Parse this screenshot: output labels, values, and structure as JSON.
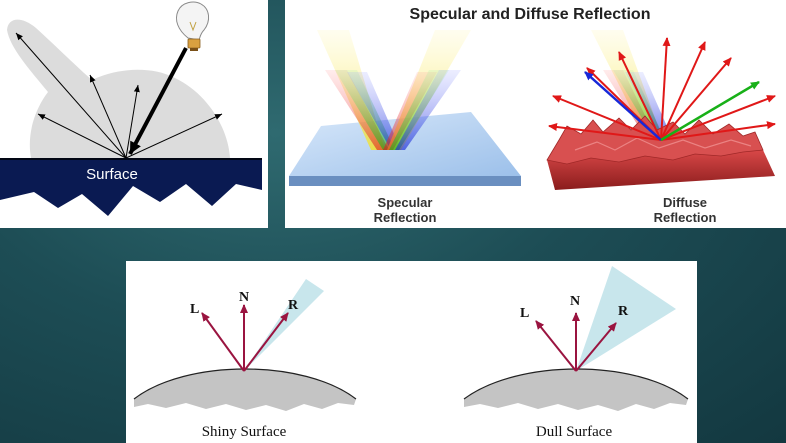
{
  "left_diagram": {
    "surface_label": "Surface",
    "icons": [
      "light-bulb-icon"
    ]
  },
  "right_diagram": {
    "title": "Specular and Diffuse Reflection",
    "specular_label_line1": "Specular",
    "specular_label_line2": "Reflection",
    "diffuse_label_line1": "Diffuse",
    "diffuse_label_line2": "Reflection",
    "colors": {
      "red": "#e01818",
      "green": "#18b018",
      "blue": "#1828d8",
      "yellow": "#f0e030"
    }
  },
  "bottom_diagram": {
    "shiny": {
      "caption": "Shiny Surface",
      "L": "L",
      "N": "N",
      "R": "R"
    },
    "dull": {
      "caption": "Dull Surface",
      "L": "L",
      "N": "N",
      "R": "R"
    },
    "colors": {
      "vector": "#9a1440",
      "cone": "#c8e6ec",
      "surface": "#c4c4c4"
    }
  }
}
